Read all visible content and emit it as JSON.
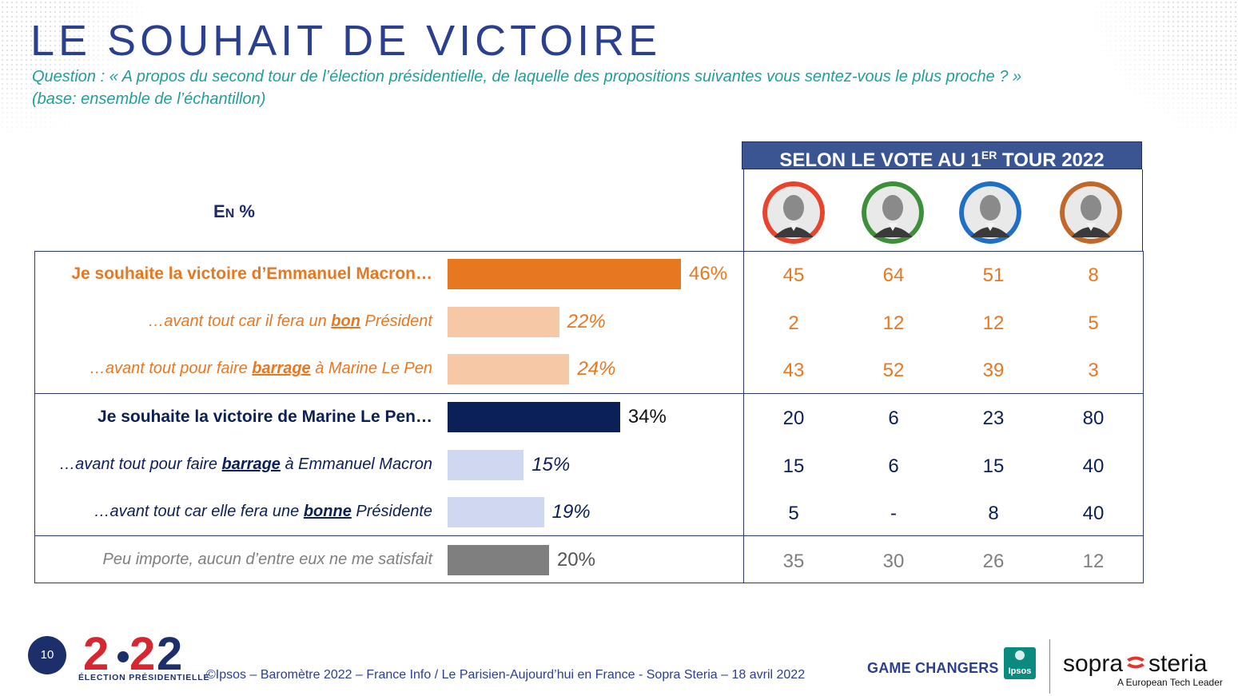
{
  "header": {
    "title": "LE SOUHAIT DE VICTOIRE",
    "question": "Question : « A propos du second tour de l’élection présidentielle, de laquelle des propositions suivantes vous sentez-vous le plus proche ? »",
    "base": "(base: ensemble de l’échantillon)"
  },
  "table": {
    "unit_label_first": "E",
    "unit_label_rest": "N",
    "unit_label_pct": " %",
    "vote_header_prefix": "SELON LE VOTE AU 1",
    "vote_header_sup": "ER",
    "vote_header_suffix": " TOUR 2022"
  },
  "candidates": [
    {
      "ring": "#e8432c",
      "icon": "candidate-1-photo-icon"
    },
    {
      "ring": "#3e8f3a",
      "icon": "candidate-2-photo-icon"
    },
    {
      "ring": "#1f6fc4",
      "icon": "candidate-3-photo-icon"
    },
    {
      "ring": "#c0682a",
      "icon": "candidate-4-photo-icon"
    }
  ],
  "rows": [
    {
      "label": "Je souhaite la victoire d’Emmanuel Macron…",
      "value_label": "46%",
      "cells": [
        "45",
        "64",
        "51",
        "8"
      ]
    },
    {
      "label_pre": "…avant tout car il fera un ",
      "label_em": "bon",
      "label_post": " Président",
      "value_label": "22%",
      "cells": [
        "2",
        "12",
        "12",
        "5"
      ]
    },
    {
      "label_pre": "…avant tout pour faire ",
      "label_em": "barrage",
      "label_post": " à Marine Le Pen",
      "value_label": "24%",
      "cells": [
        "43",
        "52",
        "39",
        "3"
      ]
    },
    {
      "label": "Je souhaite la victoire de Marine Le Pen…",
      "value_label": "34%",
      "cells": [
        "20",
        "6",
        "23",
        "80"
      ]
    },
    {
      "label_pre": "…avant tout pour faire ",
      "label_em": "barrage",
      "label_post": " à Emmanuel Macron",
      "value_label": "15%",
      "cells": [
        "15",
        "6",
        "15",
        "40"
      ]
    },
    {
      "label_pre": "…avant tout car elle fera une ",
      "label_em": "bonne",
      "label_post": " Présidente",
      "value_label": "19%",
      "cells": [
        "5",
        "-",
        "8",
        "40"
      ]
    },
    {
      "label": "Peu importe, aucun d’entre eux ne me satisfait",
      "value_label": "20%",
      "cells": [
        "35",
        "30",
        "26",
        "12"
      ]
    }
  ],
  "chart_data": {
    "type": "bar",
    "orientation": "horizontal",
    "categories": [
      "Je souhaite la victoire d’Emmanuel Macron…",
      "…avant tout car il fera un bon Président",
      "…avant tout pour faire barrage à Marine Le Pen",
      "Je souhaite la victoire de Marine Le Pen…",
      "…avant tout pour faire barrage à Emmanuel Macron",
      "…avant tout car elle fera une bonne Présidente",
      "Peu importe, aucun d’entre eux ne me satisfait"
    ],
    "values": [
      46,
      22,
      24,
      34,
      15,
      19,
      20
    ],
    "bar_colors": [
      "#e87722",
      "#f6c8a6",
      "#f6c8a6",
      "#0c2058",
      "#cfd8f0",
      "#cfd8f0",
      "#7f7f7f"
    ],
    "xlim": [
      0,
      100
    ]
  },
  "colors": {
    "macron": "#e87722",
    "macron_light": "#f6c8a6",
    "lepen": "#0c2058",
    "lepen_light": "#cfd8f0",
    "neutral": "#7f7f7f",
    "title": "#2a3f8f",
    "question": "#229e9a"
  },
  "footer": {
    "page_number": "10",
    "logo_text": "ÉLECTION PRÉSIDENTIELLE",
    "source": "©Ipsos – Baromètre 2022 – France Info / Le Parisien-Aujourd’hui en France - Sopra Steria – 18 avril 2022",
    "game_changers": "GAME CHANGERS",
    "ipsos": "Ipsos",
    "sopra_left": "sopra",
    "sopra_right": "steria",
    "tagline": "A European Tech Leader"
  }
}
